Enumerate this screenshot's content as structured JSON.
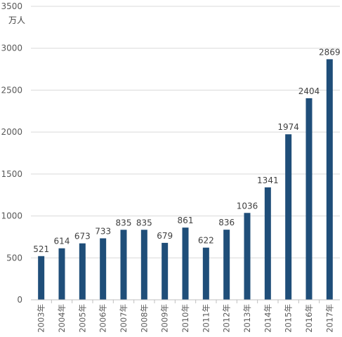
{
  "chart_data": {
    "type": "bar",
    "unit_label": "万人",
    "categories": [
      "2003年",
      "2004年",
      "2005年",
      "2006年",
      "2007年",
      "2008年",
      "2009年",
      "2010年",
      "2011年",
      "2012年",
      "2013年",
      "2014年",
      "2015年",
      "2016年",
      "2017年"
    ],
    "values": [
      521,
      614,
      673,
      733,
      835,
      835,
      679,
      861,
      622,
      836,
      1036,
      1341,
      1974,
      2404,
      2869
    ],
    "data_labels": [
      "521",
      "614",
      "673",
      "733",
      "835",
      "835",
      "679",
      "861",
      "622",
      "836",
      "1036",
      "1341",
      "1974",
      "2404",
      "2869"
    ],
    "ylim": [
      0,
      3500
    ],
    "yticks": [
      0,
      500,
      1000,
      1500,
      2000,
      2500,
      3000,
      3500
    ],
    "ytick_labels": [
      "0",
      "500",
      "1000",
      "1500",
      "2000",
      "2500",
      "3000",
      "3500"
    ],
    "grid": true,
    "colors": {
      "bar": "#1f4e79"
    }
  }
}
